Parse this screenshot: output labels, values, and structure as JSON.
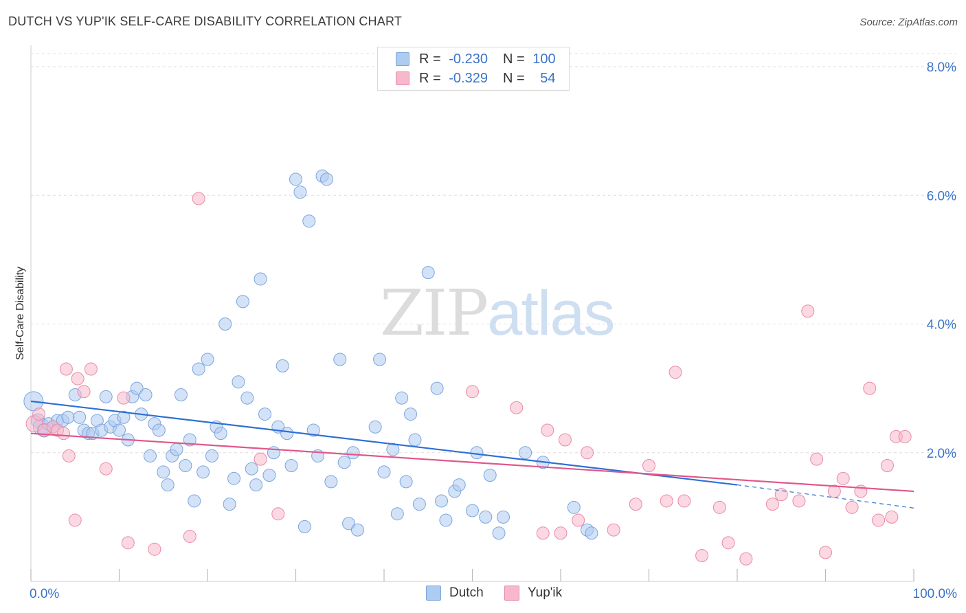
{
  "title": "DUTCH VS YUP'IK SELF-CARE DISABILITY CORRELATION CHART",
  "source": "Source: ZipAtlas.com",
  "watermark": {
    "part1": "ZIP",
    "part2": "atlas"
  },
  "legend": {
    "rows": [
      {
        "r_label": "R = ",
        "r_value": "-0.230",
        "n_label": "N = ",
        "n_value": "100",
        "color": "#aecbf0"
      },
      {
        "r_label": "R = ",
        "r_value": "-0.329",
        "n_label": "N = ",
        "n_value": "54",
        "color": "#f7b8cb"
      }
    ]
  },
  "bottom_legend": [
    {
      "label": "Dutch",
      "color": "#aecbf0"
    },
    {
      "label": "Yup'ik",
      "color": "#f7b8cb"
    }
  ],
  "chart_data": {
    "type": "scatter",
    "title": "DUTCH VS YUP'IK SELF-CARE DISABILITY CORRELATION CHART",
    "ylabel": "Self-Care Disability",
    "xlabel": "",
    "xlim": [
      0,
      100
    ],
    "ylim": [
      0,
      8.0
    ],
    "x_tick_labels": [
      "0.0%",
      "100.0%"
    ],
    "y_ticks": [
      2.0,
      4.0,
      6.0,
      8.0
    ],
    "y_tick_labels": [
      "2.0%",
      "4.0%",
      "6.0%",
      "8.0%"
    ],
    "grid": true,
    "legend_position": "top-center",
    "series": [
      {
        "name": "Dutch",
        "color": "#aecbf0",
        "stroke": "#7aa5de",
        "trend_color": "#2e6fd6",
        "trend": {
          "x0": 0,
          "y0": 2.8,
          "x1": 80,
          "y1": 1.5,
          "dashed_to_x": 100,
          "dashed_to_y": 1.14
        },
        "points": [
          [
            0.3,
            2.8,
            14
          ],
          [
            0.8,
            2.5,
            10
          ],
          [
            1.2,
            2.4,
            12
          ],
          [
            1.5,
            2.35,
            10
          ],
          [
            2,
            2.45,
            9
          ],
          [
            2.5,
            2.4,
            9
          ],
          [
            3,
            2.5,
            9
          ],
          [
            3.6,
            2.5,
            9
          ],
          [
            4.2,
            2.55,
            9
          ],
          [
            5,
            2.9,
            9
          ],
          [
            5.5,
            2.55,
            9
          ],
          [
            6,
            2.35,
            9
          ],
          [
            6.5,
            2.3,
            9
          ],
          [
            7,
            2.3,
            9
          ],
          [
            7.5,
            2.5,
            9
          ],
          [
            8,
            2.35,
            9
          ],
          [
            8.5,
            2.87,
            9
          ],
          [
            9,
            2.4,
            9
          ],
          [
            9.5,
            2.5,
            9
          ],
          [
            10,
            2.35,
            9
          ],
          [
            10.5,
            2.55,
            9
          ],
          [
            11,
            2.2,
            9
          ],
          [
            11.5,
            2.87,
            9
          ],
          [
            12,
            3.0,
            9
          ],
          [
            12.5,
            2.6,
            9
          ],
          [
            13,
            2.9,
            9
          ],
          [
            13.5,
            1.95,
            9
          ],
          [
            14,
            2.45,
            9
          ],
          [
            14.5,
            2.35,
            9
          ],
          [
            15,
            1.7,
            9
          ],
          [
            15.5,
            1.5,
            9
          ],
          [
            16,
            1.95,
            9
          ],
          [
            16.5,
            2.05,
            9
          ],
          [
            17,
            2.9,
            9
          ],
          [
            17.5,
            1.8,
            9
          ],
          [
            18,
            2.2,
            9
          ],
          [
            18.5,
            1.25,
            9
          ],
          [
            19,
            3.3,
            9
          ],
          [
            19.5,
            1.7,
            9
          ],
          [
            20,
            3.45,
            9
          ],
          [
            20.5,
            1.95,
            9
          ],
          [
            21,
            2.4,
            9
          ],
          [
            21.5,
            2.3,
            9
          ],
          [
            22,
            4.0,
            9
          ],
          [
            22.5,
            1.2,
            9
          ],
          [
            23,
            1.6,
            9
          ],
          [
            23.5,
            3.1,
            9
          ],
          [
            24,
            4.35,
            9
          ],
          [
            24.5,
            2.85,
            9
          ],
          [
            25,
            1.75,
            9
          ],
          [
            25.5,
            1.5,
            9
          ],
          [
            26,
            4.7,
            9
          ],
          [
            26.5,
            2.6,
            9
          ],
          [
            27,
            1.65,
            9
          ],
          [
            27.5,
            2.0,
            9
          ],
          [
            28,
            2.4,
            9
          ],
          [
            28.5,
            3.35,
            9
          ],
          [
            29,
            2.3,
            9
          ],
          [
            29.5,
            1.8,
            9
          ],
          [
            30,
            6.25,
            9
          ],
          [
            30.5,
            6.05,
            9
          ],
          [
            31,
            0.85,
            9
          ],
          [
            31.5,
            5.6,
            9
          ],
          [
            32,
            2.35,
            9
          ],
          [
            32.5,
            1.95,
            9
          ],
          [
            33,
            6.3,
            9
          ],
          [
            33.5,
            6.25,
            9
          ],
          [
            34,
            1.55,
            9
          ],
          [
            35,
            3.45,
            9
          ],
          [
            35.5,
            1.85,
            9
          ],
          [
            36,
            0.9,
            9
          ],
          [
            36.5,
            2.0,
            9
          ],
          [
            37,
            0.8,
            9
          ],
          [
            39,
            2.4,
            9
          ],
          [
            39.5,
            3.45,
            9
          ],
          [
            40,
            1.7,
            9
          ],
          [
            41,
            2.05,
            9
          ],
          [
            41.5,
            1.05,
            9
          ],
          [
            42,
            2.85,
            9
          ],
          [
            42.5,
            1.55,
            9
          ],
          [
            43,
            2.6,
            9
          ],
          [
            43.5,
            2.2,
            9
          ],
          [
            44,
            1.2,
            9
          ],
          [
            45,
            4.8,
            9
          ],
          [
            46,
            3.0,
            9
          ],
          [
            46.5,
            1.25,
            9
          ],
          [
            47,
            0.95,
            9
          ],
          [
            48,
            1.4,
            9
          ],
          [
            48.5,
            1.5,
            9
          ],
          [
            50,
            1.1,
            9
          ],
          [
            50.5,
            2.0,
            9
          ],
          [
            51.5,
            1.0,
            9
          ],
          [
            52,
            1.65,
            9
          ],
          [
            53,
            0.75,
            9
          ],
          [
            53.5,
            1.0,
            9
          ],
          [
            56,
            2.0,
            9
          ],
          [
            58,
            1.85,
            9
          ],
          [
            61.5,
            1.15,
            9
          ],
          [
            63,
            0.8,
            9
          ],
          [
            63.5,
            0.75,
            9
          ]
        ]
      },
      {
        "name": "Yup'ik",
        "color": "#f7b8cb",
        "stroke": "#e88aa8",
        "trend_color": "#e0578a",
        "trend": {
          "x0": 0,
          "y0": 2.3,
          "x1": 100,
          "y1": 1.4
        },
        "points": [
          [
            0.4,
            2.45,
            12
          ],
          [
            0.9,
            2.6,
            9
          ],
          [
            1.5,
            2.35,
            9
          ],
          [
            2.5,
            2.4,
            9
          ],
          [
            3,
            2.35,
            9
          ],
          [
            3.7,
            2.3,
            9
          ],
          [
            4,
            3.3,
            9
          ],
          [
            4.3,
            1.95,
            9
          ],
          [
            5,
            0.95,
            9
          ],
          [
            5.3,
            3.15,
            9
          ],
          [
            6,
            2.95,
            9
          ],
          [
            6.8,
            3.3,
            9
          ],
          [
            8.5,
            1.75,
            9
          ],
          [
            10.5,
            2.85,
            9
          ],
          [
            11,
            0.6,
            9
          ],
          [
            14,
            0.5,
            9
          ],
          [
            18,
            0.7,
            9
          ],
          [
            19,
            5.95,
            9
          ],
          [
            26,
            1.9,
            9
          ],
          [
            28,
            1.05,
            9
          ],
          [
            50,
            2.95,
            9
          ],
          [
            55,
            2.7,
            9
          ],
          [
            58,
            0.75,
            9
          ],
          [
            58.5,
            2.35,
            9
          ],
          [
            60,
            0.75,
            9
          ],
          [
            60.5,
            2.2,
            9
          ],
          [
            62,
            0.95,
            9
          ],
          [
            63,
            2.0,
            9
          ],
          [
            66,
            0.8,
            9
          ],
          [
            68.5,
            1.2,
            9
          ],
          [
            70,
            1.8,
            9
          ],
          [
            72,
            1.25,
            9
          ],
          [
            73,
            3.25,
            9
          ],
          [
            74,
            1.25,
            9
          ],
          [
            76,
            0.4,
            9
          ],
          [
            78,
            1.15,
            9
          ],
          [
            79,
            0.6,
            9
          ],
          [
            81,
            0.35,
            9
          ],
          [
            84,
            1.2,
            9
          ],
          [
            85,
            1.35,
            9
          ],
          [
            87,
            1.25,
            9
          ],
          [
            88,
            4.2,
            9
          ],
          [
            89,
            1.9,
            9
          ],
          [
            90,
            0.45,
            9
          ],
          [
            91,
            1.4,
            9
          ],
          [
            92,
            1.6,
            9
          ],
          [
            93,
            1.15,
            9
          ],
          [
            94,
            1.4,
            9
          ],
          [
            95,
            3.0,
            9
          ],
          [
            96,
            0.95,
            9
          ],
          [
            97,
            1.8,
            9
          ],
          [
            98,
            2.25,
            9
          ],
          [
            97.5,
            1.0,
            9
          ],
          [
            99,
            2.25,
            9
          ]
        ]
      }
    ]
  }
}
